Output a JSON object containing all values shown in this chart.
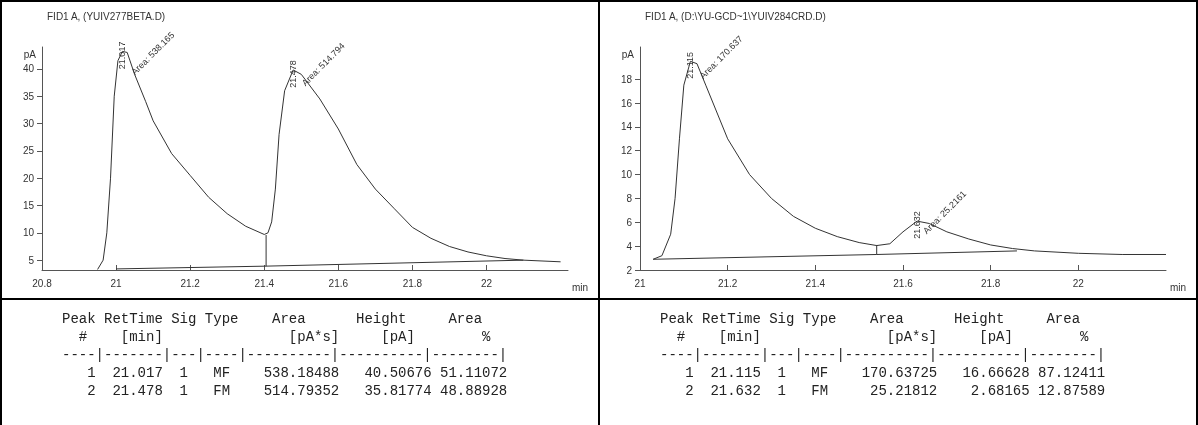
{
  "chart_data": [
    {
      "type": "line",
      "title": "FID1 A, (YUIV277BETA.D)",
      "xlabel": "min",
      "ylabel": "pA",
      "xlim": [
        20.8,
        22.22
      ],
      "xticks": [
        20.8,
        21,
        21.2,
        21.4,
        21.6,
        21.8,
        22
      ],
      "ylim": [
        3.2,
        44
      ],
      "yticks": [
        5,
        10,
        15,
        20,
        25,
        30,
        35,
        40
      ],
      "marker": "none",
      "series": [
        {
          "color": "#333333",
          "x": [
            20.95,
            20.965,
            20.975,
            20.985,
            20.995,
            21.005,
            21.017,
            21.03,
            21.05,
            21.08,
            21.1,
            21.15,
            21.2,
            21.25,
            21.3,
            21.35,
            21.4,
            21.41,
            21.42,
            21.43,
            21.44,
            21.455,
            21.478,
            21.5,
            21.55,
            21.6,
            21.65,
            21.7,
            21.75,
            21.8,
            21.85,
            21.9,
            21.95,
            22,
            22.05,
            22.1,
            22.2
          ],
          "values": [
            3.3,
            5,
            10,
            20,
            35,
            41.5,
            43.2,
            43,
            39,
            34,
            30.5,
            24.5,
            20.5,
            16.5,
            13.5,
            11.2,
            9.7,
            10,
            12,
            18,
            28,
            36,
            39.8,
            39,
            34.5,
            29,
            22.5,
            18,
            14.5,
            11,
            9,
            7.5,
            6.5,
            5.8,
            5.3,
            5,
            4.7
          ]
        },
        {
          "color": "#333333",
          "x": [
            21.0,
            21.4,
            22.1
          ],
          "values": [
            3.4,
            3.9,
            5
          ]
        },
        {
          "color": "#333333",
          "x": [
            21.405,
            21.405
          ],
          "values": [
            3.9,
            9.6
          ]
        }
      ],
      "annotations": [
        {
          "text": "21.017",
          "x": 21.017,
          "y": 43.2
        },
        {
          "text": "Area: 538.165",
          "x": 21.04,
          "y": 41
        },
        {
          "text": "21.478",
          "x": 21.478,
          "y": 39.8
        },
        {
          "text": "Area: 514.794",
          "x": 21.5,
          "y": 39
        },
        "Peak RetTime Sig Type    Area      Height     Area  ",
        "  #    [min]               [pA*s]     [pA]        %   ",
        "----|-------|---|----|----------|----------|--------|",
        "   1  21.017  1   MF    538.18488   40.50676 51.11072",
        "   2  21.478  1   FM    514.79352   35.81774 48.88928"
      ]
    },
    {
      "type": "line",
      "title": "FID1 A, (D:\\YU-GCD~1\\YUIV284CRD.D)",
      "xlabel": "min",
      "ylabel": "pA",
      "xlim": [
        21,
        22.2
      ],
      "xticks": [
        21,
        21.2,
        21.4,
        21.6,
        21.8,
        22
      ],
      "ylim": [
        2,
        20.7
      ],
      "yticks": [
        2,
        4,
        6,
        8,
        10,
        12,
        14,
        16,
        18
      ],
      "marker": "none",
      "series": [
        {
          "color": "#333333",
          "x": [
            21.03,
            21.05,
            21.07,
            21.08,
            21.09,
            21.1,
            21.115,
            21.13,
            21.15,
            21.2,
            21.25,
            21.3,
            21.35,
            21.4,
            21.45,
            21.5,
            21.54,
            21.57,
            21.6,
            21.632,
            21.66,
            21.7,
            21.75,
            21.8,
            21.85,
            21.9,
            22,
            22.1,
            22.2
          ],
          "values": [
            2.9,
            3.2,
            5,
            8,
            13,
            17.5,
            19.5,
            19.3,
            17.5,
            13,
            10,
            8,
            6.5,
            5.5,
            4.8,
            4.3,
            4.05,
            4.2,
            5.2,
            6.1,
            5.9,
            5.2,
            4.6,
            4.1,
            3.8,
            3.6,
            3.4,
            3.3,
            3.3
          ]
        },
        {
          "color": "#333333",
          "x": [
            21.03,
            21.54,
            21.86
          ],
          "values": [
            2.9,
            3.3,
            3.6
          ]
        },
        {
          "color": "#333333",
          "x": [
            21.54,
            21.54
          ],
          "values": [
            3.3,
            4.1
          ]
        }
      ],
      "annotations": [
        {
          "text": "21.115",
          "x": 21.115,
          "y": 19.5
        },
        {
          "text": "Area: 170.637",
          "x": 21.135,
          "y": 19
        },
        {
          "text": "21.632",
          "x": 21.632,
          "y": 6.1
        },
        {
          "text": "Area: 25.2161",
          "x": 21.645,
          "y": 6.0
        },
        "Peak RetTime Sig Type    Area      Height     Area  ",
        "  #    [min]               [pA*s]     [pA]        %   ",
        "----|-------|---|----|----------|----------|--------|",
        "   1  21.115  1   MF    170.63725   16.66628 87.12411",
        "   2  21.632  1   FM     25.21812    2.68165 12.87589"
      ]
    }
  ]
}
